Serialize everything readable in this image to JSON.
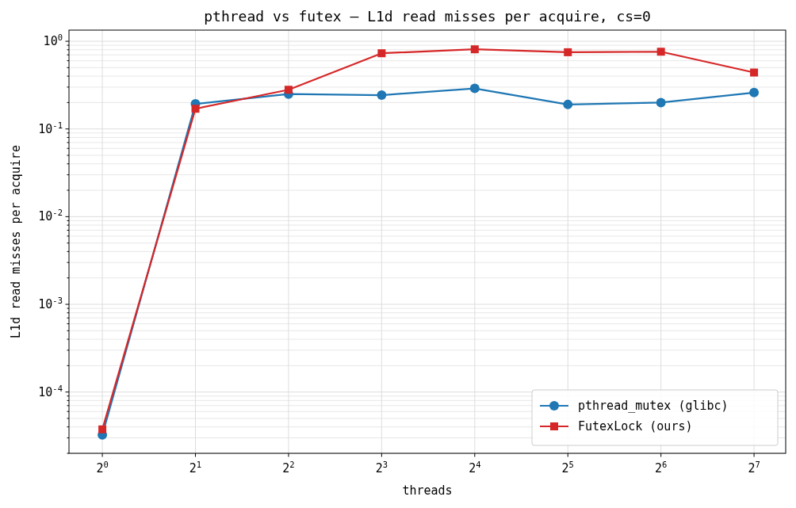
{
  "chart_data": {
    "type": "line",
    "title": "pthread vs futex — L1d read misses per acquire, cs=0",
    "xlabel": "threads",
    "ylabel": "L1d read misses per acquire",
    "log": "xy",
    "grid": true,
    "legend": "bottom right",
    "line_style": "solid",
    "x": [
      1,
      2,
      4,
      8,
      16,
      32,
      64,
      128
    ],
    "xlim": [
      0.78,
      162
    ],
    "xticks": [
      {
        "value": 1,
        "label": "2$^{0}$"
      },
      {
        "value": 2,
        "label": "2$^{1}$"
      },
      {
        "value": 4,
        "label": "2$^{2}$"
      },
      {
        "value": 8,
        "label": "2$^{3}$"
      },
      {
        "value": 16,
        "label": "2$^{4}$"
      },
      {
        "value": 32,
        "label": "2$^{5}$"
      },
      {
        "value": 64,
        "label": "2$^{6}$"
      },
      {
        "value": 128,
        "label": "2$^{7}$"
      }
    ],
    "ylim": [
      2e-05,
      1.34
    ],
    "yticks": [
      {
        "value": 2e-05,
        "label": null
      },
      {
        "value": 3e-05,
        "label": null
      },
      {
        "value": 4e-05,
        "label": null
      },
      {
        "value": 5e-05,
        "label": null
      },
      {
        "value": 6e-05,
        "label": null
      },
      {
        "value": 7e-05,
        "label": null
      },
      {
        "value": 8e-05,
        "label": null
      },
      {
        "value": 9e-05,
        "label": null
      },
      {
        "value": 0.0001,
        "label": "10$^{-4}$"
      },
      {
        "value": 0.0002,
        "label": null
      },
      {
        "value": 0.0003,
        "label": null
      },
      {
        "value": 0.0004,
        "label": null
      },
      {
        "value": 0.0005,
        "label": null
      },
      {
        "value": 0.0006,
        "label": null
      },
      {
        "value": 0.0007,
        "label": null
      },
      {
        "value": 0.0008,
        "label": null
      },
      {
        "value": 0.0009,
        "label": null
      },
      {
        "value": 0.001,
        "label": "10$^{-3}$"
      },
      {
        "value": 0.002,
        "label": null
      },
      {
        "value": 0.003,
        "label": null
      },
      {
        "value": 0.004,
        "label": null
      },
      {
        "value": 0.005,
        "label": null
      },
      {
        "value": 0.006,
        "label": null
      },
      {
        "value": 0.007,
        "label": null
      },
      {
        "value": 0.008,
        "label": null
      },
      {
        "value": 0.009,
        "label": null
      },
      {
        "value": 0.01,
        "label": "10$^{-2}$"
      },
      {
        "value": 0.02,
        "label": null
      },
      {
        "value": 0.03,
        "label": null
      },
      {
        "value": 0.04,
        "label": null
      },
      {
        "value": 0.05,
        "label": null
      },
      {
        "value": 0.06,
        "label": null
      },
      {
        "value": 0.07,
        "label": null
      },
      {
        "value": 0.08,
        "label": null
      },
      {
        "value": 0.09,
        "label": null
      },
      {
        "value": 0.1,
        "label": "10$^{-1}$"
      },
      {
        "value": 0.2,
        "label": null
      },
      {
        "value": 0.3,
        "label": null
      },
      {
        "value": 0.4,
        "label": null
      },
      {
        "value": 0.5,
        "label": null
      },
      {
        "value": 0.6,
        "label": null
      },
      {
        "value": 0.7,
        "label": null
      },
      {
        "value": 0.8,
        "label": null
      },
      {
        "value": 0.9,
        "label": null
      },
      {
        "value": 1,
        "label": "10$^{0}$"
      }
    ],
    "series": [
      {
        "name": "pthread_mutex (glibc)",
        "color": "#1f77b4",
        "marker": "circle",
        "values": [
          3.25e-05,
          0.193,
          0.25,
          0.243,
          0.29,
          0.19,
          0.2,
          0.26
        ]
      },
      {
        "name": "FutexLock (ours)",
        "color": "#d62728",
        "marker": "square",
        "values": [
          3.75e-05,
          0.17,
          0.28,
          0.73,
          0.81,
          0.75,
          0.76,
          0.44
        ]
      }
    ]
  }
}
